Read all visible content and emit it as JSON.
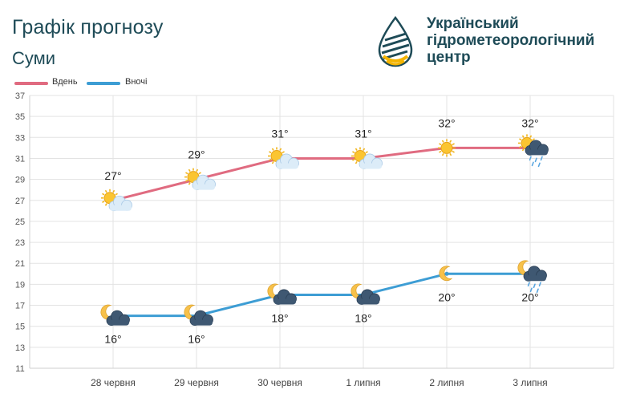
{
  "header": {
    "title": "Графік прогнозу",
    "subtitle": "Суми"
  },
  "logo": {
    "line1": "Український",
    "line2": "гідрометеорологічний",
    "line3": "центр",
    "colors": {
      "dark": "#1e4b57",
      "accent": "#f4b400"
    }
  },
  "legend": {
    "day_label": "Вдень",
    "night_label": "Вночі"
  },
  "chart_data": {
    "type": "line",
    "categories": [
      "28 червня",
      "29 червня",
      "30 червня",
      "1 липня",
      "2 липня",
      "3 липня"
    ],
    "ylim": [
      11,
      37
    ],
    "yticks": [
      11,
      13,
      15,
      17,
      19,
      21,
      23,
      25,
      27,
      29,
      31,
      33,
      35,
      37
    ],
    "grid": true,
    "legend_position": "top-left",
    "series": [
      {
        "name": "Вдень",
        "color": "#e06b80",
        "values": [
          27,
          29,
          31,
          31,
          32,
          32
        ],
        "labels": [
          "27°",
          "29°",
          "31°",
          "31°",
          "32°",
          "32°"
        ],
        "icons": [
          "sun-cloud-icon",
          "sun-cloud-icon",
          "sun-cloud-icon",
          "sun-cloud-icon",
          "sun-icon",
          "sun-rain-cloud-icon"
        ]
      },
      {
        "name": "Вночі",
        "color": "#3d9dd4",
        "values": [
          16,
          16,
          18,
          18,
          20,
          20
        ],
        "labels": [
          "16°",
          "16°",
          "18°",
          "18°",
          "20°",
          "20°"
        ],
        "icons": [
          "moon-cloud-icon",
          "moon-cloud-icon",
          "moon-cloud-icon",
          "moon-cloud-icon",
          "moon-icon",
          "moon-rain-cloud-icon"
        ]
      }
    ]
  }
}
